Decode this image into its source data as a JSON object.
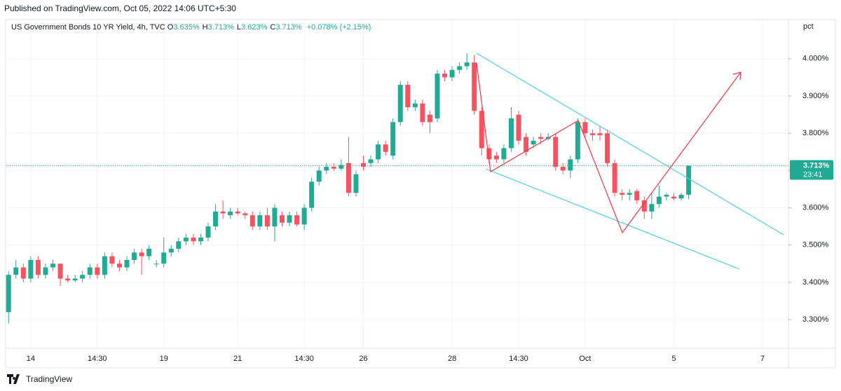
{
  "header": "Published on TradingView.com, Oct 05, 2022 14:06 UTC+5:30",
  "footer": "TradingView",
  "chart_data": {
    "type": "candlestick",
    "legend": {
      "symbol": "US Government Bonds 10 YR Yield, 4h, TVC",
      "items": [
        {
          "key": "O",
          "text": "3.635%"
        },
        {
          "key": "H",
          "text": "3.713%"
        },
        {
          "key": "L",
          "text": "3.623%"
        },
        {
          "key": "C",
          "text": "3.713%"
        }
      ],
      "change": "+0.078% (+2.15%)"
    },
    "y_unit": "pct",
    "up_color": "#22ab94",
    "down_color": "#f7525f",
    "last_price": {
      "value": 3.713,
      "label": "3.713%"
    },
    "countdown": "23:41",
    "open": [
      3.32,
      3.42,
      3.44,
      3.41,
      3.46,
      3.42,
      3.44,
      3.45,
      3.41,
      3.405,
      3.41,
      3.42,
      3.44,
      3.42,
      3.47,
      3.45,
      3.44,
      3.46,
      3.48,
      3.47,
      3.45,
      3.45,
      3.48,
      3.49,
      3.51,
      3.52,
      3.51,
      3.52,
      3.55,
      3.59,
      3.58,
      3.59,
      3.585,
      3.58,
      3.55,
      3.58,
      3.55,
      3.58,
      3.56,
      3.58,
      3.555,
      3.6,
      3.67,
      3.7,
      3.71,
      3.705,
      3.72,
      3.64,
      3.72,
      3.72,
      3.73,
      3.77,
      3.74,
      3.83,
      3.93,
      3.87,
      3.88,
      3.85,
      3.84,
      3.96,
      3.95,
      3.97,
      3.98,
      3.99,
      3.86,
      3.76,
      3.74,
      3.73,
      3.76,
      3.85,
      3.79,
      3.77,
      3.79,
      3.785,
      3.79,
      3.71,
      3.7,
      3.73,
      3.83,
      3.8,
      3.8,
      3.8,
      3.72,
      3.64,
      3.635,
      3.645,
      3.62,
      3.59,
      3.61,
      3.63,
      3.63,
      3.625,
      3.635
    ],
    "high": [
      3.43,
      3.46,
      3.45,
      3.47,
      3.47,
      3.45,
      3.46,
      3.45,
      3.42,
      3.42,
      3.43,
      3.45,
      3.45,
      3.48,
      3.48,
      3.46,
      3.47,
      3.49,
      3.49,
      3.5,
      3.46,
      3.52,
      3.5,
      3.52,
      3.53,
      3.53,
      3.53,
      3.56,
      3.61,
      3.62,
      3.6,
      3.6,
      3.59,
      3.59,
      3.59,
      3.6,
      3.61,
      3.59,
      3.59,
      3.59,
      3.61,
      3.68,
      3.71,
      3.72,
      3.72,
      3.73,
      3.79,
      3.7,
      3.74,
      3.74,
      3.78,
      3.78,
      3.84,
      3.94,
      3.94,
      3.89,
      3.89,
      3.86,
      3.97,
      3.97,
      3.98,
      3.99,
      4.015,
      4.01,
      3.87,
      3.77,
      3.75,
      3.77,
      3.87,
      3.86,
      3.8,
      3.79,
      3.8,
      3.8,
      3.8,
      3.72,
      3.74,
      3.84,
      3.84,
      3.81,
      3.82,
      3.81,
      3.73,
      3.65,
      3.65,
      3.65,
      3.63,
      3.64,
      3.66,
      3.64,
      3.64,
      3.64,
      3.713
    ],
    "low": [
      3.29,
      3.41,
      3.4,
      3.4,
      3.41,
      3.41,
      3.43,
      3.39,
      3.4,
      3.4,
      3.4,
      3.41,
      3.41,
      3.41,
      3.44,
      3.43,
      3.43,
      3.45,
      3.42,
      3.46,
      3.44,
      3.44,
      3.47,
      3.48,
      3.5,
      3.5,
      3.5,
      3.51,
      3.54,
      3.57,
      3.57,
      3.58,
      3.57,
      3.54,
      3.54,
      3.54,
      3.51,
      3.55,
      3.55,
      3.55,
      3.54,
      3.59,
      3.66,
      3.69,
      3.7,
      3.7,
      3.63,
      3.63,
      3.7,
      3.71,
      3.72,
      3.74,
      3.73,
      3.82,
      3.86,
      3.86,
      3.82,
      3.8,
      3.83,
      3.94,
      3.94,
      3.96,
      3.97,
      3.85,
      3.74,
      3.72,
      3.72,
      3.72,
      3.75,
      3.77,
      3.74,
      3.76,
      3.77,
      3.78,
      3.7,
      3.69,
      3.68,
      3.72,
      3.79,
      3.78,
      3.78,
      3.71,
      3.63,
      3.62,
      3.62,
      3.61,
      3.57,
      3.57,
      3.6,
      3.62,
      3.62,
      3.62,
      3.623
    ],
    "close": [
      3.42,
      3.44,
      3.41,
      3.46,
      3.42,
      3.44,
      3.45,
      3.41,
      3.405,
      3.41,
      3.42,
      3.44,
      3.42,
      3.47,
      3.45,
      3.44,
      3.46,
      3.48,
      3.47,
      3.49,
      3.45,
      3.48,
      3.49,
      3.51,
      3.52,
      3.51,
      3.52,
      3.55,
      3.59,
      3.585,
      3.59,
      3.585,
      3.58,
      3.55,
      3.58,
      3.55,
      3.6,
      3.56,
      3.58,
      3.555,
      3.6,
      3.67,
      3.7,
      3.71,
      3.705,
      3.715,
      3.64,
      3.69,
      3.71,
      3.73,
      3.77,
      3.75,
      3.83,
      3.93,
      3.87,
      3.88,
      3.83,
      3.83,
      3.96,
      3.95,
      3.97,
      3.98,
      3.99,
      3.86,
      3.76,
      3.73,
      3.73,
      3.76,
      3.84,
      3.78,
      3.75,
      3.78,
      3.785,
      3.79,
      3.71,
      3.7,
      3.73,
      3.83,
      3.8,
      3.795,
      3.795,
      3.72,
      3.64,
      3.635,
      3.64,
      3.62,
      3.59,
      3.61,
      3.63,
      3.635,
      3.625,
      3.635,
      3.713
    ],
    "xlim": [
      -0.4,
      105.5
    ],
    "xticks": [
      {
        "value": 3,
        "label": "14"
      },
      {
        "value": 12,
        "label": "14:30"
      },
      {
        "value": 21,
        "label": "19"
      },
      {
        "value": 31,
        "label": "21"
      },
      {
        "value": 40,
        "label": "14:30"
      },
      {
        "value": 48,
        "label": "26"
      },
      {
        "value": 60,
        "label": "28"
      },
      {
        "value": 69,
        "label": "14:30"
      },
      {
        "value": 78,
        "label": "Oct"
      },
      {
        "value": 90,
        "label": "5"
      },
      {
        "value": 102,
        "label": "7"
      }
    ],
    "ylim": [
      3.223,
      4.105
    ],
    "yticks": [
      {
        "value": 3.3,
        "label": "3.300%"
      },
      {
        "value": 3.4,
        "label": "3.400%"
      },
      {
        "value": 3.5,
        "label": "3.500%"
      },
      {
        "value": 3.6,
        "label": "3.600%"
      },
      {
        "value": 3.7,
        "label": "3.700%"
      },
      {
        "value": 3.8,
        "label": "3.800%"
      },
      {
        "value": 3.9,
        "label": "3.900%"
      },
      {
        "value": 4.0,
        "label": "4.000%"
      }
    ],
    "grid": true
  }
}
